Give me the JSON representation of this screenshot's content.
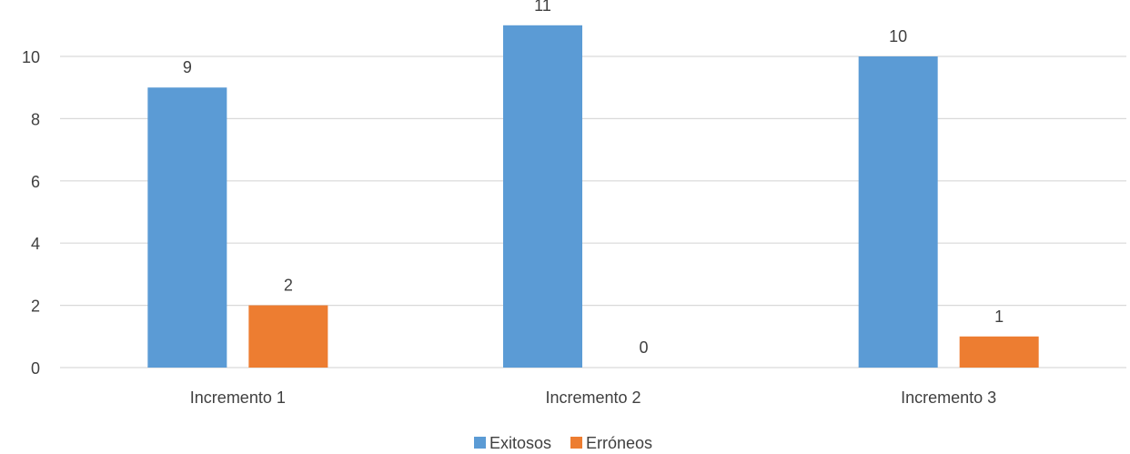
{
  "chart_data": {
    "type": "bar",
    "title": "",
    "xlabel": "",
    "ylabel": "",
    "categories": [
      "Incremento 1",
      "Incremento 2",
      "Incremento 3"
    ],
    "series": [
      {
        "name": "Exitosos",
        "values": [
          9,
          11,
          10
        ],
        "color": "#5B9BD5"
      },
      {
        "name": "Erróneos",
        "values": [
          2,
          0,
          1
        ],
        "color": "#ED7D31"
      }
    ],
    "ylim": [
      0,
      12
    ],
    "yticks": [
      0,
      2,
      4,
      6,
      8,
      10
    ],
    "grid": true,
    "gridline_color": "#D9D9D9",
    "data_labels": true,
    "legend_position": "bottom"
  }
}
